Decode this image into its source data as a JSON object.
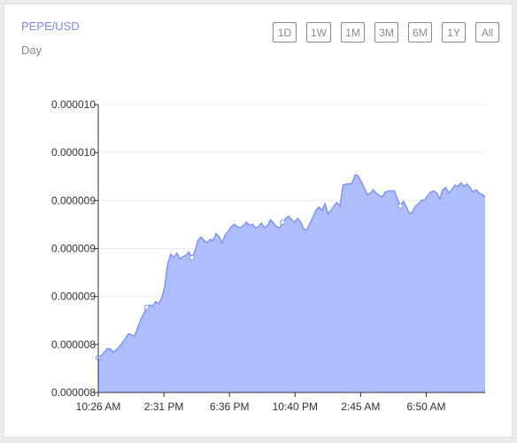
{
  "header": {
    "pair": "PEPE/USD",
    "period": "Day"
  },
  "range_buttons": [
    "1D",
    "1W",
    "1M",
    "3M",
    "6M",
    "1Y",
    "All"
  ],
  "colors": {
    "accent": "#7b8cf0",
    "area_fill": "#aebefc",
    "line": "#7f95f5"
  },
  "chart_data": {
    "type": "area",
    "title": "",
    "xlabel": "",
    "ylabel": "",
    "y_tick_labels": [
      "0.000010",
      "0.000010",
      "0.000009",
      "0.000009",
      "0.000009",
      "0.000008",
      "0.000008"
    ],
    "x_tick_labels": [
      "10:26 AM",
      "2:31 PM",
      "6:36 PM",
      "10:40 PM",
      "2:45 AM",
      "6:50 AM"
    ],
    "ylim": [
      8e-06,
      1.05e-05
    ],
    "grid": true,
    "series": [
      {
        "values": [
          8.3e-06,
          8.32e-06,
          8.35e-06,
          8.38e-06,
          8.38e-06,
          8.35e-06,
          8.37e-06,
          8.4e-06,
          8.43e-06,
          8.47e-06,
          8.51e-06,
          8.5e-06,
          8.49e-06,
          8.56e-06,
          8.63e-06,
          8.68e-06,
          8.74e-06,
          8.76e-06,
          8.75e-06,
          8.79e-06,
          8.77e-06,
          8.82e-06,
          8.92e-06,
          9.12e-06,
          9.2e-06,
          9.17e-06,
          9.21e-06,
          9.16e-06,
          9.18e-06,
          9.19e-06,
          9.22e-06,
          9.17e-06,
          9.23e-06,
          9.32e-06,
          9.35e-06,
          9.32e-06,
          9.3e-06,
          9.33e-06,
          9.32e-06,
          9.38e-06,
          9.35e-06,
          9.3e-06,
          9.37e-06,
          9.4e-06,
          9.44e-06,
          9.46e-06,
          9.44e-06,
          9.43e-06,
          9.45e-06,
          9.48e-06,
          9.45e-06,
          9.46e-06,
          9.43e-06,
          9.44e-06,
          9.47e-06,
          9.43e-06,
          9.45e-06,
          9.5e-06,
          9.47e-06,
          9.44e-06,
          9.43e-06,
          9.48e-06,
          9.51e-06,
          9.53e-06,
          9.5e-06,
          9.48e-06,
          9.51e-06,
          9.48e-06,
          9.42e-06,
          9.41e-06,
          9.47e-06,
          9.52e-06,
          9.58e-06,
          9.61e-06,
          9.58e-06,
          9.64e-06,
          9.55e-06,
          9.58e-06,
          9.62e-06,
          9.65e-06,
          9.62e-06,
          9.8e-06,
          9.81e-06,
          9.81e-06,
          9.82e-06,
          9.89e-06,
          9.88e-06,
          9.83e-06,
          9.78e-06,
          9.72e-06,
          9.73e-06,
          9.76e-06,
          9.73e-06,
          9.71e-06,
          9.7e-06,
          9.74e-06,
          9.75e-06,
          9.75e-06,
          9.75e-06,
          9.68e-06,
          9.62e-06,
          9.66e-06,
          9.61e-06,
          9.55e-06,
          9.57e-06,
          9.62e-06,
          9.64e-06,
          9.67e-06,
          9.67e-06,
          9.71e-06,
          9.74e-06,
          9.75e-06,
          9.73e-06,
          9.68e-06,
          9.76e-06,
          9.78e-06,
          9.73e-06,
          9.76e-06,
          9.8e-06,
          9.79e-06,
          9.82e-06,
          9.79e-06,
          9.81e-06,
          9.78e-06,
          9.74e-06,
          9.76e-06,
          9.73e-06,
          9.72e-06,
          9.7e-06
        ]
      }
    ]
  }
}
